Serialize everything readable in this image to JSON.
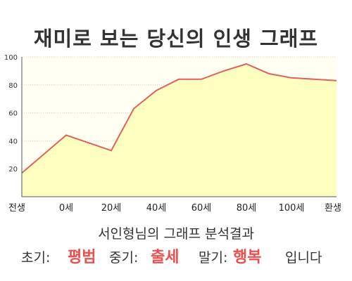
{
  "title": "재미로 보는 당신의 인생 그래프",
  "caption": "서인형님의 그래프 분석결과",
  "result": {
    "early_label": "초기:",
    "early_value": "평범",
    "middle_label": "중기:",
    "middle_value": "출세",
    "late_label": "말기:",
    "late_value": "행복",
    "ending": "입니다"
  },
  "colors": {
    "line": "#e06060",
    "fill": "#ffffc0",
    "highlight": "#ee4e4e",
    "plot_bg": "#fffff2"
  },
  "chart_data": {
    "type": "area",
    "title": "재미로 보는 당신의 인생 그래프",
    "xlabel": "",
    "ylabel": "",
    "x_ticks": [
      "전생",
      "0세",
      "20세",
      "40세",
      "60세",
      "80세",
      "100세",
      "환생"
    ],
    "y_ticks": [
      20,
      40,
      60,
      80,
      100
    ],
    "ylim": [
      0,
      100
    ],
    "grid": true,
    "series": [
      {
        "points": [
          {
            "x": "전생",
            "y": 17
          },
          {
            "x": "0세",
            "y": 44
          },
          {
            "x": "20세",
            "y": 33
          },
          {
            "x": "30세",
            "y": 63
          },
          {
            "x": "40세",
            "y": 76
          },
          {
            "x": "50세",
            "y": 84
          },
          {
            "x": "60세",
            "y": 84
          },
          {
            "x": "70세",
            "y": 90
          },
          {
            "x": "80세",
            "y": 95
          },
          {
            "x": "90세",
            "y": 88
          },
          {
            "x": "100세",
            "y": 85
          },
          {
            "x": "환생",
            "y": 83
          }
        ]
      }
    ]
  }
}
